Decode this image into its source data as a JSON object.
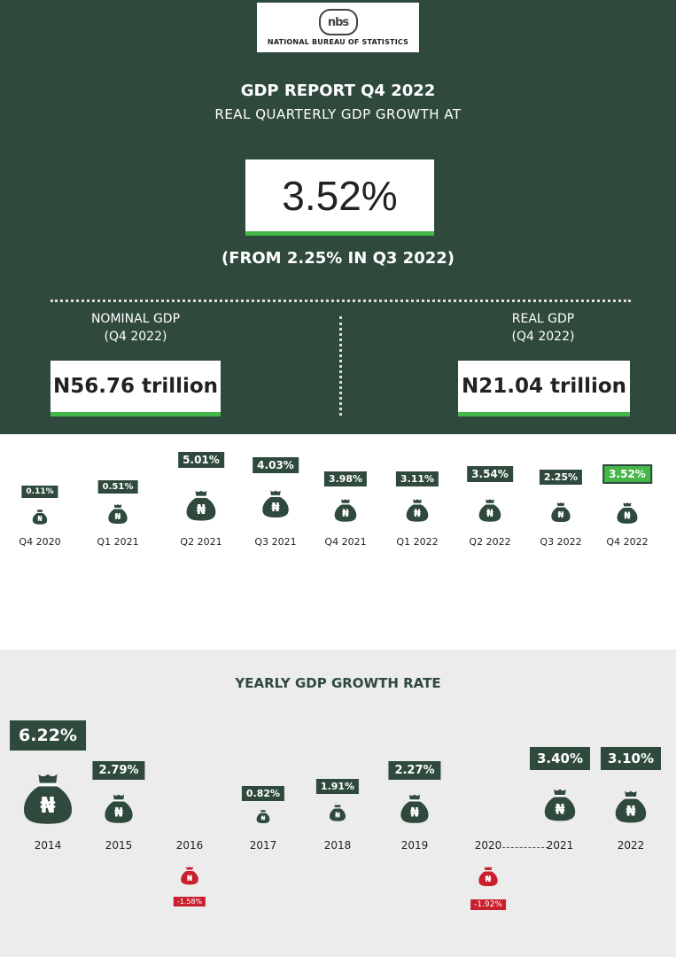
{
  "logo": {
    "mark": "nbs",
    "text": "NATIONAL BUREAU OF STATISTICS"
  },
  "header": {
    "title": "GDP REPORT Q4 2022",
    "subtitle": "REAL QUARTERLY GDP GROWTH  AT",
    "headline_value": "3.52%",
    "from_note": "(FROM 2.25% IN Q3 2022)"
  },
  "nominal": {
    "label": "NOMINAL GDP",
    "period": "(Q4 2022)",
    "value": "N56.76 trillion"
  },
  "real": {
    "label": "REAL GDP",
    "period": "(Q4 2022)",
    "value": "N21.04 trillion"
  },
  "colors": {
    "dark_green": "#2f4a3d",
    "accent_green": "#45b648",
    "negative_red": "#c8202e",
    "light_gray": "#ececec"
  },
  "icons": {
    "money_bag": "naira-money-bag-icon",
    "currency": "₦"
  },
  "quarterly": [
    {
      "label": "Q4 2020",
      "value": "0.11%",
      "growth": 0.11
    },
    {
      "label": "Q1 2021",
      "value": "0.51%",
      "growth": 0.51
    },
    {
      "label": "Q2 2021",
      "value": "5.01%",
      "growth": 5.01
    },
    {
      "label": "Q3 2021",
      "value": "4.03%",
      "growth": 4.03
    },
    {
      "label": "Q4 2021",
      "value": "3.98%",
      "growth": 3.98
    },
    {
      "label": "Q1 2022",
      "value": "3.11%",
      "growth": 3.11
    },
    {
      "label": "Q2 2022",
      "value": "3.54%",
      "growth": 3.54
    },
    {
      "label": "Q3 2022",
      "value": "2.25%",
      "growth": 2.25
    },
    {
      "label": "Q4 2022",
      "value": "3.52%",
      "growth": 3.52,
      "highlight": true
    }
  ],
  "yearly": {
    "title": "YEARLY GDP GROWTH RATE",
    "items": [
      {
        "label": "2014",
        "value": "6.22%",
        "growth": 6.22
      },
      {
        "label": "2015",
        "value": "2.79%",
        "growth": 2.79
      },
      {
        "label": "2016",
        "value": "-1.58%",
        "growth": -1.58
      },
      {
        "label": "2017",
        "value": "0.82%",
        "growth": 0.82
      },
      {
        "label": "2018",
        "value": "1.91%",
        "growth": 1.91
      },
      {
        "label": "2019",
        "value": "2.27%",
        "growth": 2.27
      },
      {
        "label": "2020",
        "value": "-1.92%",
        "growth": -1.92
      },
      {
        "label": "2021",
        "value": "3.40%",
        "growth": 3.4
      },
      {
        "label": "2022",
        "value": "3.10%",
        "growth": 3.1
      }
    ]
  }
}
